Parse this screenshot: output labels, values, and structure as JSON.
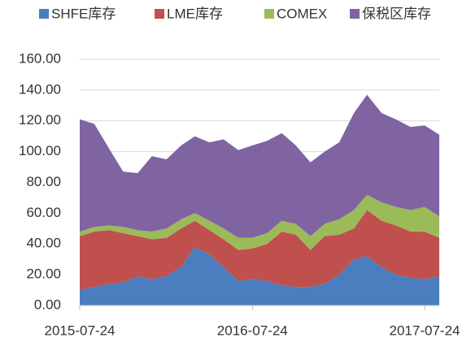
{
  "chart_data": {
    "type": "stacked_area",
    "x": [
      "2015-07-24",
      "2015-08-24",
      "2015-09-24",
      "2015-10-24",
      "2015-11-24",
      "2015-12-24",
      "2016-01-24",
      "2016-02-24",
      "2016-03-24",
      "2016-04-24",
      "2016-05-24",
      "2016-06-24",
      "2016-07-24",
      "2016-08-24",
      "2016-09-24",
      "2016-10-24",
      "2016-11-24",
      "2016-12-24",
      "2017-01-24",
      "2017-02-24",
      "2017-03-24",
      "2017-04-24",
      "2017-05-24",
      "2017-06-24",
      "2017-07-24",
      "2017-08-24"
    ],
    "series": [
      {
        "name": "SHFE库存",
        "color": "#4a7ebf",
        "values": [
          10,
          12,
          14,
          15,
          19,
          17,
          19,
          25,
          38,
          33,
          25,
          16,
          17,
          16,
          13,
          12,
          12,
          14,
          20,
          30,
          32,
          25,
          20,
          18,
          17,
          19
        ]
      },
      {
        "name": "LME库存",
        "color": "#c0504d",
        "values": [
          35,
          36,
          35,
          32,
          26,
          26,
          25,
          25,
          17,
          16,
          18,
          20,
          20,
          24,
          35,
          34,
          24,
          31,
          26,
          20,
          30,
          30,
          32,
          30,
          31,
          25
        ]
      },
      {
        "name": "COMEX",
        "color": "#9bbb59",
        "values": [
          3,
          3,
          3,
          4,
          4,
          5,
          6,
          6,
          5,
          6,
          7,
          8,
          7,
          7,
          7,
          7,
          9,
          8,
          10,
          12,
          10,
          12,
          12,
          14,
          16,
          14
        ]
      },
      {
        "name": "保税区库存",
        "color": "#8064a2",
        "values": [
          73,
          67,
          50,
          36,
          37,
          49,
          45,
          48,
          50,
          51,
          58,
          57,
          60,
          60,
          57,
          51,
          48,
          47,
          50,
          63,
          65,
          58,
          57,
          54,
          53,
          53
        ]
      }
    ],
    "xticks": [
      "2015-07-24",
      "2016-07-24",
      "2017-07-24"
    ],
    "ylim": [
      0,
      160
    ],
    "yticks": [
      {
        "value": 0,
        "label": "0.00"
      },
      {
        "value": 20,
        "label": "20.00"
      },
      {
        "value": 40,
        "label": "40.00"
      },
      {
        "value": 60,
        "label": "60.00"
      },
      {
        "value": 80,
        "label": "80.00"
      },
      {
        "value": 100,
        "label": "100.00"
      },
      {
        "value": 120,
        "label": "120.00"
      },
      {
        "value": 140,
        "label": "140.00"
      },
      {
        "value": 160,
        "label": "160.00"
      }
    ],
    "grid": true,
    "legend": "top"
  }
}
